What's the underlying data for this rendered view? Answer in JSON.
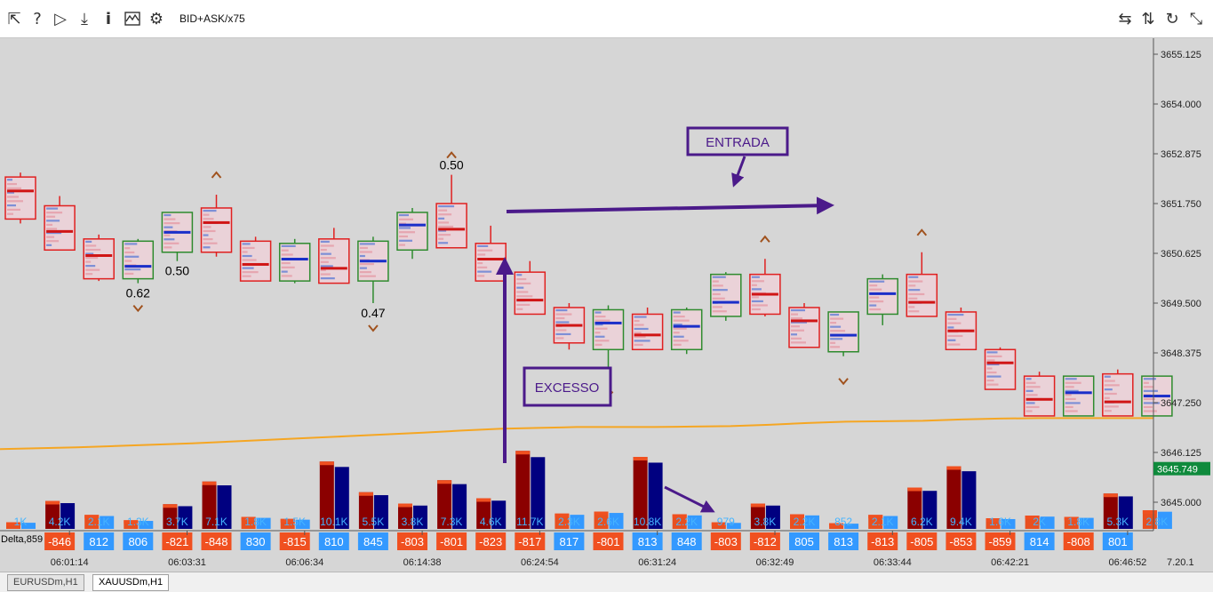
{
  "toolbar": {
    "left_icons": [
      "cursor-arrow-icon",
      "help-icon",
      "play-icon",
      "download-icon",
      "info-icon",
      "chart-wave-icon",
      "gear-icon"
    ],
    "mode_label": "BID+ASK/x75",
    "right_icons": [
      "swap-horizontal-icon",
      "swap-vertical-icon",
      "refresh-icon",
      "resize-icon"
    ]
  },
  "price_axis": {
    "labels": [
      "3655.125",
      "3654.000",
      "3652.875",
      "3651.750",
      "3650.625",
      "3649.500",
      "3648.375",
      "3647.250",
      "3646.125",
      "3645.000"
    ],
    "current_price": "3645.749"
  },
  "time_axis": {
    "labels": [
      "06:01:14",
      "06:03:31",
      "06:06:34",
      "06:14:38",
      "06:24:54",
      "06:31:24",
      "06:32:49",
      "06:33:44",
      "06:42:21",
      "06:46:52"
    ],
    "version": "7.20.1"
  },
  "candles": [
    {
      "dir": "down",
      "o": 3652.35,
      "c": 3651.4,
      "h": 3652.45,
      "l": 3651.3
    },
    {
      "dir": "down",
      "o": 3651.7,
      "c": 3650.7,
      "h": 3651.92,
      "l": 3650.7
    },
    {
      "dir": "down",
      "o": 3650.95,
      "c": 3650.05,
      "h": 3651.05,
      "l": 3650.0
    },
    {
      "dir": "up",
      "o": 3650.05,
      "c": 3650.9,
      "h": 3650.95,
      "l": 3649.95
    },
    {
      "dir": "up",
      "o": 3650.65,
      "c": 3651.55,
      "h": 3651.55,
      "l": 3650.45
    },
    {
      "dir": "down",
      "o": 3651.65,
      "c": 3650.65,
      "h": 3651.95,
      "l": 3650.55
    },
    {
      "dir": "down",
      "o": 3650.9,
      "c": 3650.0,
      "h": 3651.0,
      "l": 3650.0
    },
    {
      "dir": "up",
      "o": 3650.0,
      "c": 3650.85,
      "h": 3650.95,
      "l": 3649.95
    },
    {
      "dir": "down",
      "o": 3650.95,
      "c": 3649.95,
      "h": 3651.2,
      "l": 3649.95
    },
    {
      "dir": "up",
      "o": 3650.0,
      "c": 3650.9,
      "h": 3651.0,
      "l": 3649.5
    },
    {
      "dir": "up",
      "o": 3650.7,
      "c": 3651.55,
      "h": 3651.65,
      "l": 3650.5
    },
    {
      "dir": "down",
      "o": 3651.75,
      "c": 3650.75,
      "h": 3652.4,
      "l": 3650.75
    },
    {
      "dir": "down",
      "o": 3650.85,
      "c": 3650.0,
      "h": 3651.25,
      "l": 3650.0
    },
    {
      "dir": "down",
      "o": 3650.2,
      "c": 3649.25,
      "h": 3650.45,
      "l": 3649.25
    },
    {
      "dir": "down",
      "o": 3649.4,
      "c": 3648.6,
      "h": 3649.5,
      "l": 3648.45
    },
    {
      "dir": "up",
      "o": 3648.45,
      "c": 3649.35,
      "h": 3649.45,
      "l": 3648.0
    },
    {
      "dir": "down",
      "o": 3649.25,
      "c": 3648.45,
      "h": 3649.4,
      "l": 3648.45
    },
    {
      "dir": "up",
      "o": 3648.45,
      "c": 3649.35,
      "h": 3649.4,
      "l": 3648.35
    },
    {
      "dir": "up",
      "o": 3649.2,
      "c": 3650.15,
      "h": 3650.2,
      "l": 3649.1
    },
    {
      "dir": "down",
      "o": 3650.15,
      "c": 3649.25,
      "h": 3650.5,
      "l": 3649.2
    },
    {
      "dir": "down",
      "o": 3649.4,
      "c": 3648.5,
      "h": 3649.5,
      "l": 3648.5
    },
    {
      "dir": "up",
      "o": 3648.4,
      "c": 3649.3,
      "h": 3649.3,
      "l": 3648.3
    },
    {
      "dir": "up",
      "o": 3649.25,
      "c": 3650.05,
      "h": 3650.15,
      "l": 3649.0
    },
    {
      "dir": "down",
      "o": 3650.15,
      "c": 3649.2,
      "h": 3650.65,
      "l": 3649.2
    },
    {
      "dir": "down",
      "o": 3649.3,
      "c": 3648.45,
      "h": 3649.4,
      "l": 3648.45
    },
    {
      "dir": "down",
      "o": 3648.45,
      "c": 3647.55,
      "h": 3648.5,
      "l": 3647.55
    },
    {
      "dir": "down",
      "o": 3647.85,
      "c": 3646.95,
      "h": 3647.95,
      "l": 3646.95
    },
    {
      "dir": "up",
      "o": 3646.95,
      "c": 3647.85,
      "h": 3647.85,
      "l": 3646.95
    },
    {
      "dir": "down",
      "o": 3647.9,
      "c": 3646.95,
      "h": 3648.0,
      "l": 3646.95
    },
    {
      "dir": "up",
      "o": 3646.95,
      "c": 3647.85,
      "h": 3647.85,
      "l": 3646.95
    }
  ],
  "candle_labels": [
    {
      "candle": 3,
      "text": "0.62",
      "pos": "below"
    },
    {
      "candle": 4,
      "text": "0.50",
      "pos": "below"
    },
    {
      "candle": 9,
      "text": "0.47",
      "pos": "below"
    },
    {
      "candle": 11,
      "text": "0.50",
      "pos": "above"
    }
  ],
  "markers": [
    {
      "candle": 3,
      "dir": "down"
    },
    {
      "candle": 5,
      "dir": "up"
    },
    {
      "candle": 9,
      "dir": "down"
    },
    {
      "candle": 11,
      "dir": "up"
    },
    {
      "candle": 15,
      "dir": "down"
    },
    {
      "candle": 19,
      "dir": "up"
    },
    {
      "candle": 21,
      "dir": "down"
    },
    {
      "candle": 23,
      "dir": "up"
    }
  ],
  "moving_average": [
    3646.2,
    3646.22,
    3646.24,
    3646.27,
    3646.3,
    3646.33,
    3646.37,
    3646.41,
    3646.45,
    3646.49,
    3646.53,
    3646.57,
    3646.62,
    3646.66,
    3646.68,
    3646.7,
    3646.7,
    3646.7,
    3646.71,
    3646.72,
    3646.75,
    3646.79,
    3646.82,
    3646.83,
    3646.84,
    3646.87,
    3646.89,
    3646.9,
    3646.9,
    3646.9,
    3646.9
  ],
  "volume_labels": [
    "1K",
    "4.2K",
    "2.1K",
    "1.3K",
    "3.7K",
    "7.1K",
    "1.8K",
    "1.5K",
    "10.1K",
    "5.5K",
    "3.8K",
    "7.3K",
    "4.6K",
    "11.7K",
    "2.3K",
    "2.6K",
    "10.8K",
    "2.2K",
    "979",
    "3.8K",
    "2.2K",
    "852",
    "2.1K",
    "6.2K",
    "9.4K",
    "1.6K",
    "2K",
    "1.8K",
    "5.3K",
    "2.8K"
  ],
  "volume_values": [
    1.0,
    4.2,
    2.1,
    1.3,
    3.7,
    7.1,
    1.8,
    1.5,
    10.1,
    5.5,
    3.8,
    7.3,
    4.6,
    11.7,
    2.3,
    2.6,
    10.8,
    2.2,
    0.979,
    3.8,
    2.2,
    0.852,
    2.1,
    6.2,
    9.4,
    1.6,
    2.0,
    1.8,
    5.3,
    2.8
  ],
  "delta_label": "Delta,859",
  "delta_values": [
    "",
    "-846",
    "812",
    "806",
    "-821",
    "-848",
    "830",
    "-815",
    "810",
    "845",
    "-803",
    "-801",
    "-823",
    "-817",
    "817",
    "-801",
    "813",
    "848",
    "-803",
    "-812",
    "805",
    "813",
    "-813",
    "-805",
    "-853",
    "-859",
    "814",
    "-808",
    "801",
    ""
  ],
  "annotations": {
    "entrada": "ENTRADA",
    "excesso": "EXCESSO"
  },
  "tabs": [
    "EURUSDm,H1",
    "XAUUSDm,H1"
  ],
  "colors": {
    "bull": "#2e8b2e",
    "bear": "#e02020",
    "annotation": "#4b1a8a",
    "ma": "#f5a623",
    "delta_neg": "#f05020",
    "delta_pos": "#3399ff",
    "vol_dark_red": "#8b0000",
    "vol_navy": "#000080",
    "current_price_bg": "#0f8a3c"
  }
}
